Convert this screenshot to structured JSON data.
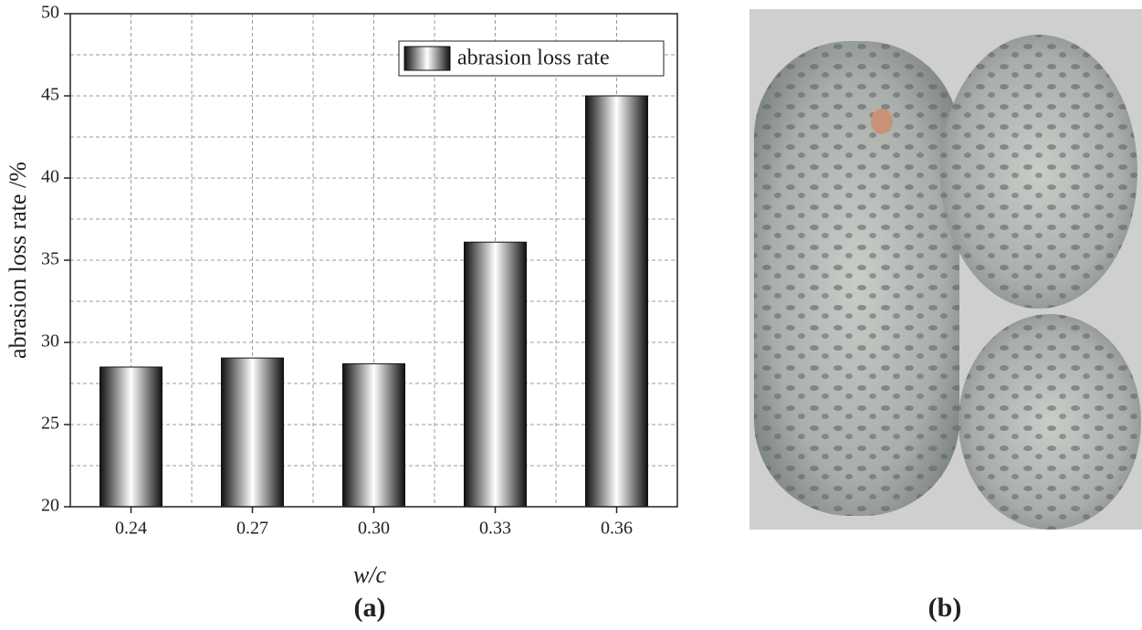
{
  "chart_data": {
    "type": "bar",
    "xlabel": "w/c",
    "ylabel": "abrasion loss rate /%",
    "categories": [
      "0.24",
      "0.27",
      "0.30",
      "0.33",
      "0.36"
    ],
    "series": [
      {
        "name": "abrasion loss rate",
        "values": [
          28.5,
          29.05,
          28.7,
          36.1,
          45.0
        ]
      }
    ],
    "ylim": [
      20,
      50
    ],
    "yticks": [
      20,
      25,
      30,
      35,
      40,
      45,
      50
    ],
    "grid": true,
    "legend": "upper right"
  },
  "panels": {
    "left": "(a)",
    "right": "(b)"
  }
}
